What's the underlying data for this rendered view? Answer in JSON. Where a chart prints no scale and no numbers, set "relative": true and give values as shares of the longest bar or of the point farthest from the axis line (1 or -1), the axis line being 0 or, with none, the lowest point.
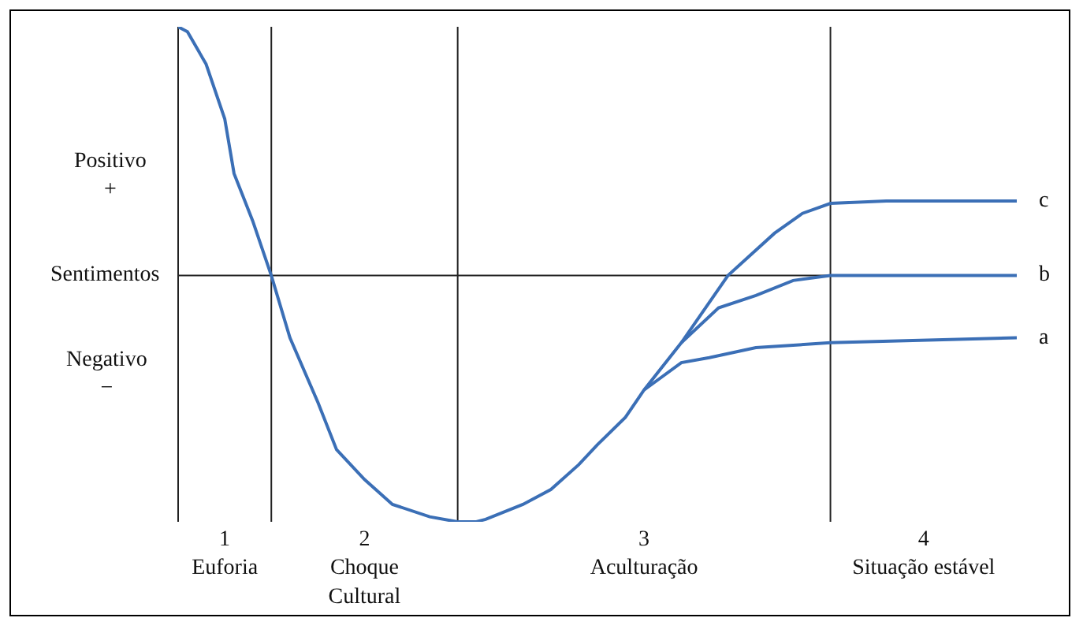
{
  "chart_data": {
    "type": "line",
    "relative": true,
    "categories": [
      null,
      null,
      null,
      null,
      null,
      "1\nEuforia",
      null,
      null,
      null,
      null,
      null,
      null,
      null,
      null,
      null,
      null,
      null,
      null,
      null,
      null,
      "2\nChoque\nCultural",
      null,
      null,
      null,
      null,
      null,
      null,
      null,
      null,
      null,
      null,
      null,
      null,
      null,
      null,
      null,
      null,
      null,
      null,
      null,
      null,
      null,
      null,
      null,
      null,
      null,
      null,
      null,
      null,
      null,
      "3\nAculturação",
      null,
      null,
      null,
      null,
      null,
      null,
      null,
      null,
      null,
      null,
      null,
      null,
      null,
      null,
      null,
      null,
      null,
      null,
      null,
      null,
      null,
      null,
      null,
      null,
      null,
      null,
      null,
      null,
      null,
      "4\nSituação estável",
      null,
      null,
      null,
      null,
      null,
      null,
      null,
      null,
      null,
      null
    ],
    "series": [
      {
        "name": "a",
        "color": "#3b6fb6",
        "values": [
          null,
          null,
          null,
          null,
          null,
          null,
          null,
          null,
          null,
          null,
          null,
          null,
          null,
          null,
          null,
          null,
          null,
          null,
          null,
          null,
          null,
          null,
          null,
          null,
          null,
          null,
          null,
          null,
          null,
          null,
          null,
          null,
          null,
          null,
          null,
          null,
          null,
          null,
          null,
          null,
          null,
          null,
          null,
          null,
          null,
          null,
          null,
          null,
          null,
          null,
          -0.46,
          null,
          null,
          null,
          -0.35,
          null,
          null,
          -0.33,
          null,
          null,
          null,
          null,
          -0.29,
          null,
          null,
          null,
          null,
          null,
          null,
          null,
          -0.27,
          null,
          null,
          null,
          null,
          null,
          null,
          null,
          null,
          null,
          null,
          null,
          null,
          null,
          null,
          null,
          null,
          null,
          null,
          null,
          -0.25
        ]
      },
      {
        "name": "b",
        "color": "#3b6fb6",
        "values": [
          null,
          null,
          null,
          null,
          null,
          null,
          null,
          null,
          null,
          null,
          null,
          null,
          null,
          null,
          null,
          null,
          null,
          null,
          null,
          null,
          null,
          null,
          null,
          null,
          null,
          null,
          null,
          null,
          null,
          null,
          null,
          null,
          null,
          null,
          null,
          null,
          null,
          null,
          null,
          null,
          null,
          null,
          null,
          null,
          null,
          null,
          null,
          null,
          null,
          null,
          null,
          null,
          null,
          null,
          -0.27,
          null,
          null,
          null,
          -0.13,
          null,
          null,
          null,
          -0.08,
          null,
          null,
          null,
          -0.02,
          null,
          null,
          null,
          0,
          null,
          null,
          null,
          null,
          null,
          null,
          null,
          null,
          null,
          null,
          null,
          null,
          null,
          null,
          null,
          null,
          null,
          null,
          null,
          0
        ]
      },
      {
        "name": "c",
        "color": "#3b6fb6",
        "values": [
          1,
          0.98,
          null,
          0.85,
          null,
          0.63,
          0.41,
          null,
          0.22,
          null,
          0,
          null,
          -0.25,
          null,
          null,
          -0.51,
          null,
          -0.7,
          null,
          null,
          -0.82,
          null,
          null,
          -0.92,
          null,
          null,
          null,
          -0.97,
          null,
          null,
          -0.99,
          null,
          -0.99,
          -0.98,
          null,
          null,
          null,
          -0.92,
          null,
          null,
          -0.86,
          null,
          null,
          -0.76,
          null,
          -0.68,
          null,
          null,
          -0.57,
          null,
          -0.46,
          null,
          null,
          null,
          -0.27,
          null,
          null,
          null,
          null,
          0,
          null,
          null,
          null,
          null,
          0.17,
          null,
          null,
          0.25,
          null,
          null,
          0.29,
          null,
          null,
          null,
          null,
          null,
          0.3,
          null,
          null,
          null,
          null,
          null,
          null,
          null,
          null,
          null,
          null,
          null,
          null,
          null,
          0.3
        ]
      }
    ],
    "ref_lines": [
      {
        "axis": "y",
        "value": 0,
        "label": "Sentimentos"
      }
    ],
    "annotations": [
      "Positivo\n+",
      "Negativo\n−"
    ],
    "marker": "none",
    "line_style": "solid",
    "grid": false,
    "legend": false
  }
}
